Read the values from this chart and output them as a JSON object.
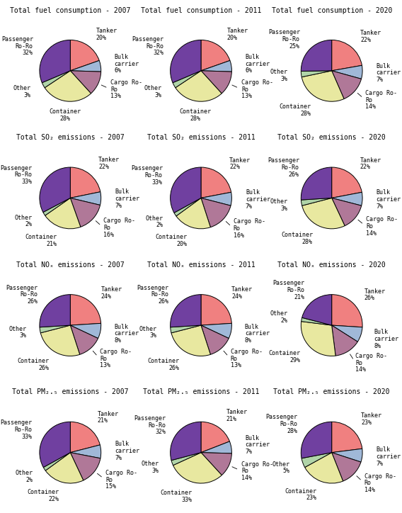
{
  "rows": [
    {
      "titles": [
        "Total fuel consumption - 2007",
        "Total fuel consumption - 2011",
        "Total fuel consumption - 2020"
      ],
      "data": [
        [
          20,
          6,
          13,
          28,
          3,
          32
        ],
        [
          20,
          6,
          13,
          28,
          3,
          32
        ],
        [
          22,
          7,
          14,
          28,
          3,
          25
        ]
      ]
    },
    {
      "titles": [
        "Total SO₂ emissions - 2007",
        "Total SO₂ emissions - 2011",
        "Total SO₂ emissions - 2020"
      ],
      "data": [
        [
          22,
          7,
          16,
          21,
          2,
          33
        ],
        [
          22,
          7,
          16,
          20,
          2,
          33
        ],
        [
          22,
          7,
          14,
          28,
          3,
          26
        ]
      ]
    },
    {
      "titles": [
        "Total NOₓ emissions - 2007",
        "Total NOₓ emissions - 2011",
        "Total NOₓ emissions - 2020"
      ],
      "data": [
        [
          24,
          8,
          13,
          26,
          3,
          26
        ],
        [
          24,
          8,
          13,
          26,
          3,
          26
        ],
        [
          26,
          8,
          14,
          29,
          2,
          21
        ]
      ]
    },
    {
      "titles": [
        "Total PM₂.₅ emissions - 2007",
        "Total PM₂.₅ emissions - 2011",
        "Total PM₂.₅ emissions - 2020"
      ],
      "data": [
        [
          21,
          7,
          15,
          22,
          2,
          33
        ],
        [
          21,
          7,
          14,
          33,
          3,
          32
        ],
        [
          23,
          7,
          14,
          23,
          5,
          28
        ]
      ]
    }
  ],
  "label_names": [
    "Tanker",
    "Bulk\ncarrier",
    "Cargo Ro-\nRo",
    "Container",
    "Other",
    "Passenger\nRo-Ro"
  ],
  "colors": [
    "#f08080",
    "#a0b8d8",
    "#b07898",
    "#e8e8a0",
    "#b0d4a8",
    "#7040a0"
  ],
  "background": "#ffffff",
  "title_fontsize": 7.0,
  "label_fontsize": 6.0
}
